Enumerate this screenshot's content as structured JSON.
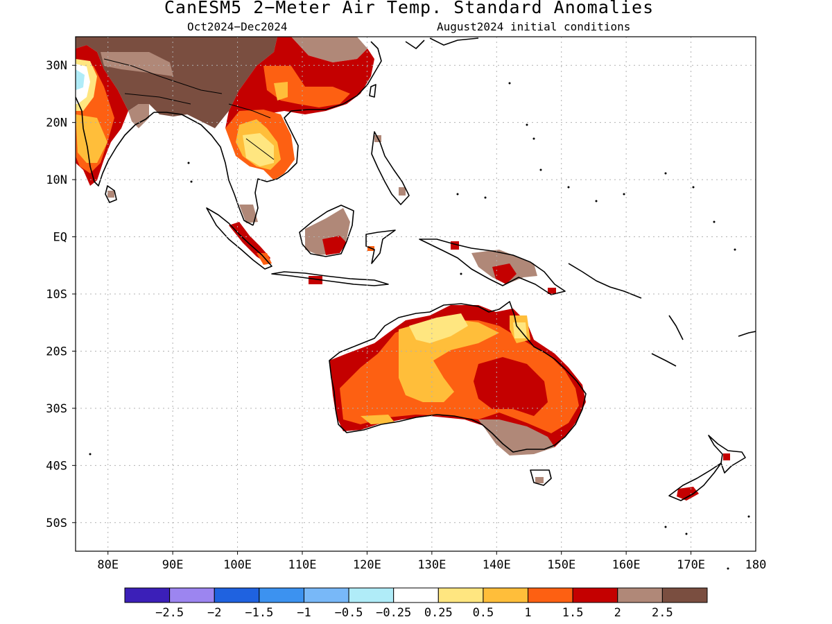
{
  "header": {
    "title": "CanESM5 2−Meter Air Temp. Standard Anomalies",
    "period": "Oct2024−Dec2024",
    "initial_conditions": "August2024 initial conditions"
  },
  "map": {
    "lon_range": [
      75,
      180
    ],
    "lat_range": [
      -55,
      35
    ],
    "lon_labels": [
      {
        "lon": 80,
        "text": "80E"
      },
      {
        "lon": 90,
        "text": "90E"
      },
      {
        "lon": 100,
        "text": "100E"
      },
      {
        "lon": 110,
        "text": "110E"
      },
      {
        "lon": 120,
        "text": "120E"
      },
      {
        "lon": 130,
        "text": "130E"
      },
      {
        "lon": 140,
        "text": "140E"
      },
      {
        "lon": 150,
        "text": "150E"
      },
      {
        "lon": 160,
        "text": "160E"
      },
      {
        "lon": 170,
        "text": "170E"
      },
      {
        "lon": 180,
        "text": "180"
      }
    ],
    "lat_labels": [
      {
        "lat": 30,
        "text": "30N"
      },
      {
        "lat": 20,
        "text": "20N"
      },
      {
        "lat": 10,
        "text": "10N"
      },
      {
        "lat": 0,
        "text": "EQ"
      },
      {
        "lat": -10,
        "text": "10S"
      },
      {
        "lat": -20,
        "text": "20S"
      },
      {
        "lat": -30,
        "text": "30S"
      },
      {
        "lat": -40,
        "text": "40S"
      },
      {
        "lat": -50,
        "text": "50S"
      }
    ],
    "grid": "dotted"
  },
  "colorbar": {
    "colors": [
      "#3b1fb8",
      "#9c85f0",
      "#1f62e0",
      "#3c92f0",
      "#78b8f8",
      "#b0ecf8",
      "#ffffff",
      "#ffe680",
      "#ffbe3a",
      "#fd6012",
      "#c40000",
      "#b08878",
      "#7a4e40"
    ],
    "labels": [
      "−2.5",
      "−2",
      "−1.5",
      "−1",
      "−0.5",
      "−0.25",
      "0.25",
      "0.5",
      "1",
      "1.5",
      "2",
      "2.5"
    ]
  }
}
